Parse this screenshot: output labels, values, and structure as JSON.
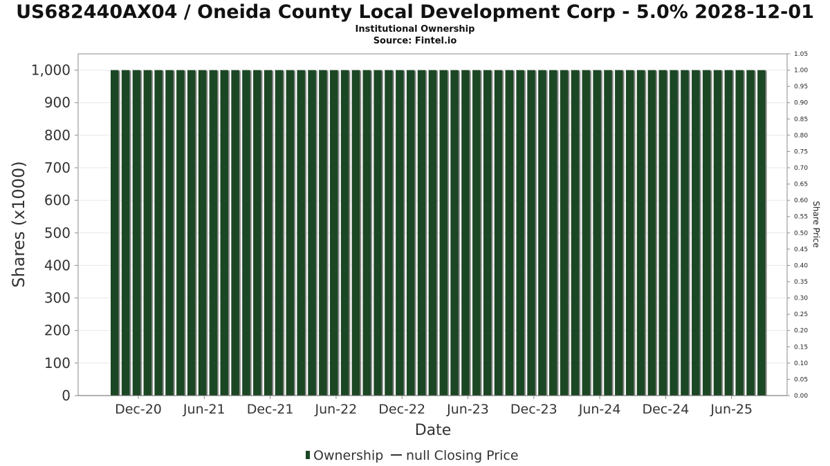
{
  "chart_data": {
    "type": "bar",
    "title": "US682440AX04 / Oneida County Local Development Corp - 5.0% 2028-12-01",
    "subtitle_lines": [
      "Institutional Ownership",
      "Source: Fintel.io"
    ],
    "xlabel": "Date",
    "ylabel": "Shares (x1000)",
    "y2label": "Share Price",
    "ylim": [
      0,
      1050
    ],
    "y_ticks": [
      0,
      100,
      200,
      300,
      400,
      500,
      600,
      700,
      800,
      900,
      1000
    ],
    "y_tick_labels": [
      "0",
      "100",
      "200",
      "300",
      "400",
      "500",
      "600",
      "700",
      "800",
      "900",
      "1,000"
    ],
    "y2lim": [
      0,
      1.05
    ],
    "y2_tick_labels": [
      "0.00",
      "0.05",
      "0.10",
      "0.15",
      "0.20",
      "0.25",
      "0.30",
      "0.35",
      "0.40",
      "0.45",
      "0.50",
      "0.55",
      "0.60",
      "0.65",
      "0.70",
      "0.75",
      "0.80",
      "0.85",
      "0.90",
      "0.95",
      "1.00",
      "1.05"
    ],
    "x_tick_labels": [
      "Dec-20",
      "Jun-21",
      "Dec-21",
      "Jun-22",
      "Dec-22",
      "Jun-23",
      "Dec-23",
      "Jun-24",
      "Dec-24",
      "Jun-25"
    ],
    "grid": true,
    "legend_position": "bottom",
    "legend": [
      "Ownership",
      "null Closing Price"
    ],
    "colors": {
      "bar": "#1c4724",
      "bar_shadow": "#8a8a8a",
      "grid": "#e6e6e6",
      "axis": "#888888"
    },
    "series": [
      {
        "name": "Ownership",
        "values": [
          1000,
          1000,
          1000,
          1000,
          1000,
          1000,
          1000,
          1000,
          1000,
          1000,
          1000,
          1000,
          1000,
          1000,
          1000,
          1000,
          1000,
          1000,
          1000,
          1000,
          1000,
          1000,
          1000,
          1000,
          1000,
          1000,
          1000,
          1000,
          1000,
          1000,
          1000,
          1000,
          1000,
          1000,
          1000,
          1000,
          1000,
          1000,
          1000,
          1000,
          1000,
          1000,
          1000,
          1000,
          1000,
          1000,
          1000,
          1000,
          1000,
          1000,
          1000,
          1000,
          1000,
          1000,
          1000,
          1000,
          1000,
          1000,
          1000,
          1000
        ]
      }
    ]
  }
}
